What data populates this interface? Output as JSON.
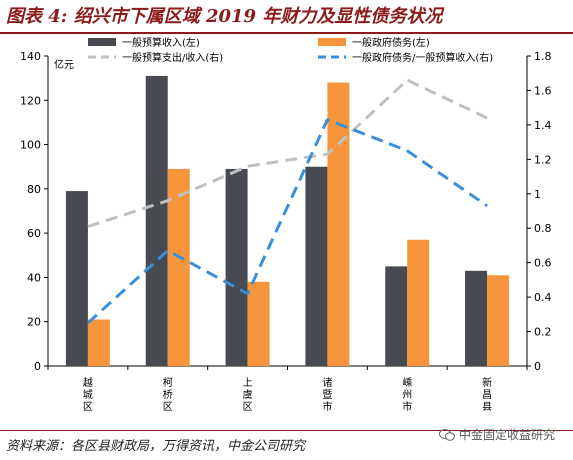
{
  "header": {
    "title": "图表 4: 绍兴市下属区域 2019 年财力及显性债务状况"
  },
  "footer": {
    "source": "资料来源：各区县财政局，万得资讯，中金公司研究",
    "watermark": "中金固定收益研究",
    "watermark_icon": "wechat-icon"
  },
  "chart_data": {
    "type": "bar",
    "categories": [
      "越城区",
      "柯桥区",
      "上虞区",
      "诸暨市",
      "嵊州市",
      "新昌县"
    ],
    "left_axis": {
      "unit": "亿元",
      "ylim": [
        0,
        140
      ],
      "ticks": [
        "0",
        "20",
        "40",
        "60",
        "80",
        "100",
        "120",
        "140"
      ]
    },
    "right_axis": {
      "ylim": [
        0,
        1.8
      ],
      "ticks": [
        "0",
        "0.2",
        "0.4",
        "0.6",
        "0.8",
        "1",
        "1.2",
        "1.4",
        "1.6",
        "1.8"
      ]
    },
    "series": [
      {
        "name": "一般预算收入(左)",
        "type": "bar",
        "axis": "left",
        "color": "#474a51",
        "values": [
          79,
          131,
          89,
          90,
          45,
          43
        ]
      },
      {
        "name": "一般政府债务(左)",
        "type": "bar",
        "axis": "left",
        "color": "#f7953c",
        "values": [
          21,
          89,
          38,
          128,
          57,
          41
        ]
      },
      {
        "name": "一般预算支出/收入(右)",
        "type": "line",
        "axis": "right",
        "color": "#c0c0c0",
        "values": [
          0.81,
          0.96,
          1.16,
          1.23,
          1.66,
          1.44
        ]
      },
      {
        "name": "一般政府债务/一般预算收入(右)",
        "type": "line",
        "axis": "right",
        "color": "#3a8fd9",
        "values": [
          0.25,
          0.67,
          0.42,
          1.43,
          1.25,
          0.93
        ]
      }
    ],
    "grid": false,
    "legend_position": "top"
  }
}
